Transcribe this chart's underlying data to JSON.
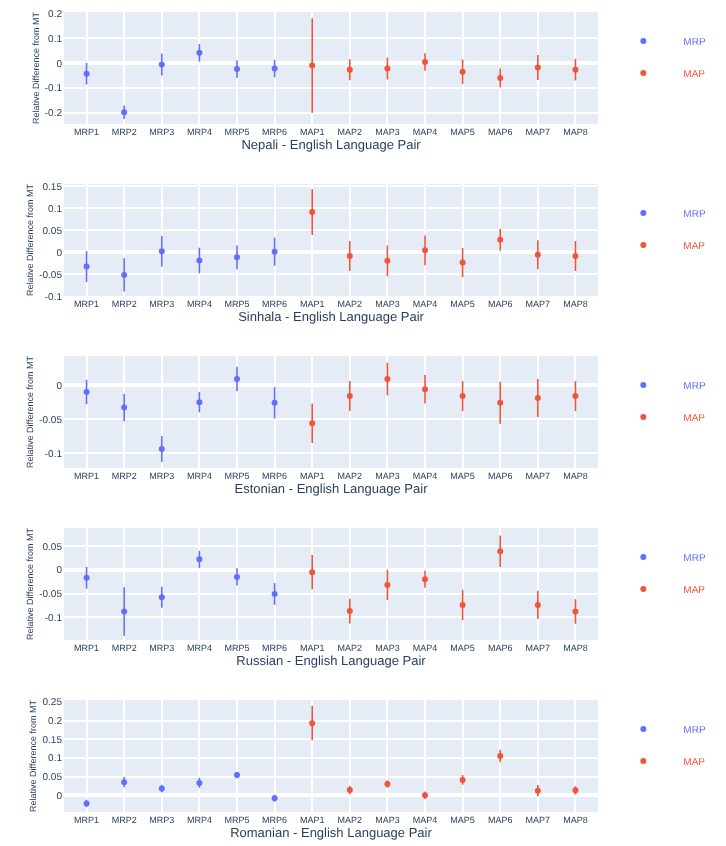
{
  "chart_data": [
    {
      "type": "scatter",
      "xlabel": "Nepali - English Language Pair",
      "ylabel": "Relative Difference from MT",
      "categories": [
        "MRP1",
        "MRP2",
        "MRP3",
        "MRP4",
        "MRP5",
        "MRP6",
        "MAP1",
        "MAP2",
        "MAP3",
        "MAP4",
        "MAP5",
        "MAP6",
        "MAP7",
        "MAP8"
      ],
      "ylim": [
        -0.245,
        0.205
      ],
      "yticks": [
        -0.2,
        -0.1,
        0,
        0.1,
        0.2
      ],
      "grid": true,
      "legend": "top right",
      "marker": "circle",
      "series": [
        {
          "name": "MRP",
          "color": "#636efa",
          "values": [
            -0.043,
            -0.198,
            -0.006,
            0.041,
            -0.024,
            -0.022,
            null,
            null,
            null,
            null,
            null,
            null,
            null,
            null
          ],
          "errors": [
            0.043,
            0.027,
            0.044,
            0.035,
            0.035,
            0.035,
            null,
            null,
            null,
            null,
            null,
            null,
            null,
            null
          ]
        },
        {
          "name": "MAP",
          "color": "#ef553b",
          "values": [
            null,
            null,
            null,
            null,
            null,
            null,
            -0.01,
            -0.027,
            -0.022,
            0.004,
            -0.035,
            -0.06,
            -0.018,
            -0.027
          ],
          "errors": [
            null,
            null,
            null,
            null,
            null,
            null,
            0.19,
            0.042,
            0.044,
            0.035,
            0.049,
            0.038,
            0.05,
            0.043
          ]
        }
      ]
    },
    {
      "type": "scatter",
      "xlabel": "Sinhala - English Language Pair",
      "ylabel": "Relative Difference from MT",
      "categories": [
        "MRP1",
        "MRP2",
        "MRP3",
        "MRP4",
        "MRP5",
        "MRP6",
        "MAP1",
        "MAP2",
        "MAP3",
        "MAP4",
        "MAP5",
        "MAP6",
        "MAP7",
        "MAP8"
      ],
      "ylim": [
        -0.1,
        0.155
      ],
      "yticks": [
        -0.1,
        -0.05,
        0,
        0.05,
        0.1,
        0.15
      ],
      "grid": true,
      "legend": "top right",
      "marker": "circle",
      "series": [
        {
          "name": "MRP",
          "color": "#636efa",
          "values": [
            -0.033,
            -0.052,
            0.002,
            -0.019,
            -0.012,
            0.001,
            null,
            null,
            null,
            null,
            null,
            null,
            null,
            null
          ],
          "errors": [
            0.035,
            0.038,
            0.035,
            0.029,
            0.027,
            0.032,
            null,
            null,
            null,
            null,
            null,
            null,
            null,
            null
          ]
        },
        {
          "name": "MAP",
          "color": "#ef553b",
          "values": [
            null,
            null,
            null,
            null,
            null,
            null,
            0.091,
            -0.009,
            -0.02,
            0.004,
            -0.024,
            0.028,
            -0.006,
            -0.009
          ],
          "errors": [
            null,
            null,
            null,
            null,
            null,
            null,
            0.052,
            0.034,
            0.035,
            0.034,
            0.033,
            0.025,
            0.033,
            0.034
          ]
        }
      ]
    },
    {
      "type": "scatter",
      "xlabel": "Estonian - English Language Pair",
      "ylabel": "Relative Difference from MT",
      "categories": [
        "MRP1",
        "MRP2",
        "MRP3",
        "MRP4",
        "MRP5",
        "MRP6",
        "MAP1",
        "MAP2",
        "MAP3",
        "MAP4",
        "MAP5",
        "MAP6",
        "MAP7",
        "MAP8"
      ],
      "ylim": [
        -0.122,
        0.043
      ],
      "yticks": [
        -0.1,
        -0.05,
        0
      ],
      "grid": true,
      "legend": "top right",
      "marker": "circle",
      "series": [
        {
          "name": "MRP",
          "color": "#636efa",
          "values": [
            -0.01,
            -0.033,
            -0.094,
            -0.025,
            0.009,
            -0.026,
            null,
            null,
            null,
            null,
            null,
            null,
            null,
            null
          ],
          "errors": [
            0.018,
            0.02,
            0.019,
            0.015,
            0.018,
            0.023,
            null,
            null,
            null,
            null,
            null,
            null,
            null,
            null
          ]
        },
        {
          "name": "MAP",
          "color": "#ef553b",
          "values": [
            null,
            null,
            null,
            null,
            null,
            null,
            -0.056,
            -0.016,
            0.009,
            -0.006,
            -0.016,
            -0.026,
            -0.019,
            -0.016
          ],
          "errors": [
            null,
            null,
            null,
            null,
            null,
            null,
            0.029,
            0.022,
            0.024,
            0.021,
            0.022,
            0.031,
            0.028,
            0.022
          ]
        }
      ]
    },
    {
      "type": "scatter",
      "xlabel": "Russian - English Language Pair",
      "ylabel": "Relative Difference from MT",
      "categories": [
        "MRP1",
        "MRP2",
        "MRP3",
        "MRP4",
        "MRP5",
        "MRP6",
        "MAP1",
        "MAP2",
        "MAP3",
        "MAP4",
        "MAP5",
        "MAP6",
        "MAP7",
        "MAP8"
      ],
      "ylim": [
        -0.148,
        0.088
      ],
      "yticks": [
        -0.1,
        -0.05,
        0,
        0.05
      ],
      "grid": true,
      "legend": "top right",
      "marker": "circle",
      "series": [
        {
          "name": "MRP",
          "color": "#636efa",
          "values": [
            -0.017,
            -0.088,
            -0.058,
            0.022,
            -0.015,
            -0.051,
            null,
            null,
            null,
            null,
            null,
            null,
            null,
            null
          ],
          "errors": [
            0.023,
            0.051,
            0.022,
            0.018,
            0.018,
            0.023,
            null,
            null,
            null,
            null,
            null,
            null,
            null,
            null
          ]
        },
        {
          "name": "MAP",
          "color": "#ef553b",
          "values": [
            null,
            null,
            null,
            null,
            null,
            null,
            -0.005,
            -0.087,
            -0.032,
            -0.02,
            -0.074,
            0.039,
            -0.074,
            -0.088
          ],
          "errors": [
            null,
            null,
            null,
            null,
            null,
            null,
            0.036,
            0.026,
            0.032,
            0.018,
            0.032,
            0.033,
            0.03,
            0.026
          ]
        }
      ]
    },
    {
      "type": "scatter",
      "xlabel": "Romanian - English Language Pair",
      "ylabel": "Relative Difference from MT",
      "categories": [
        "MRP1",
        "MRP2",
        "MRP3",
        "MRP4",
        "MRP5",
        "MRP6",
        "MAP1",
        "MAP2",
        "MAP3",
        "MAP4",
        "MAP5",
        "MAP6",
        "MAP7",
        "MAP8"
      ],
      "ylim": [
        -0.045,
        0.255
      ],
      "yticks": [
        0,
        0.05,
        0.1,
        0.15,
        0.2,
        0.25
      ],
      "grid": true,
      "legend": "top right",
      "marker": "circle",
      "series": [
        {
          "name": "MRP",
          "color": "#636efa",
          "values": [
            -0.022,
            0.035,
            0.018,
            0.033,
            0.054,
            -0.008,
            null,
            null,
            null,
            null,
            null,
            null,
            null,
            null
          ],
          "errors": [
            0.01,
            0.014,
            0.01,
            0.013,
            0.008,
            0.009,
            null,
            null,
            null,
            null,
            null,
            null,
            null,
            null
          ]
        },
        {
          "name": "MAP",
          "color": "#ef553b",
          "values": [
            null,
            null,
            null,
            null,
            null,
            null,
            0.193,
            0.014,
            0.03,
            0.0,
            0.041,
            0.105,
            0.012,
            0.013
          ],
          "errors": [
            null,
            null,
            null,
            null,
            null,
            null,
            0.046,
            0.011,
            0.01,
            0.01,
            0.013,
            0.017,
            0.015,
            0.011
          ]
        }
      ]
    }
  ]
}
